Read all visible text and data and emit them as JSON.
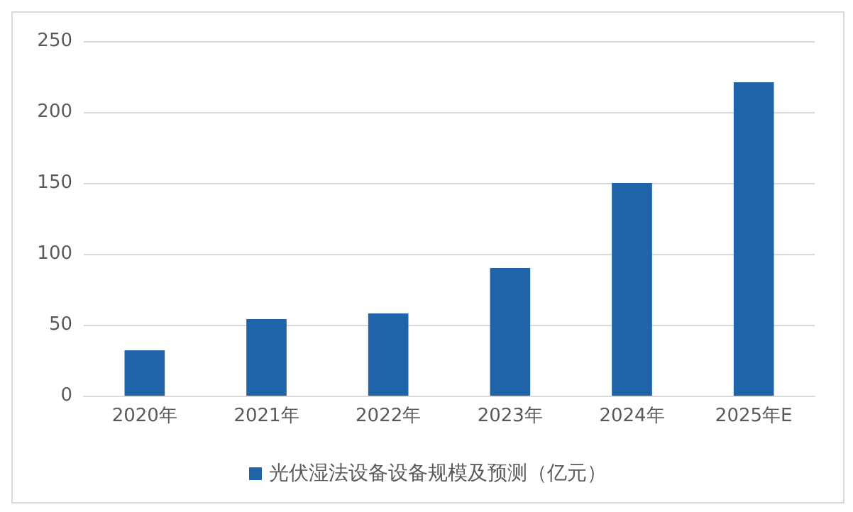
{
  "chart_data": {
    "type": "bar",
    "categories": [
      "2020年",
      "2021年",
      "2022年",
      "2023年",
      "2024年",
      "2025年E"
    ],
    "series": [
      {
        "name": "光伏湿法设备设备规模及预测（亿元）",
        "color": "#1f63a8",
        "values": [
          32,
          54,
          58,
          90,
          150,
          221
        ]
      }
    ],
    "ylim": [
      0,
      250
    ],
    "yticks": [
      0,
      50,
      100,
      150,
      200,
      250
    ],
    "grid": "y",
    "legend": "bottom"
  }
}
